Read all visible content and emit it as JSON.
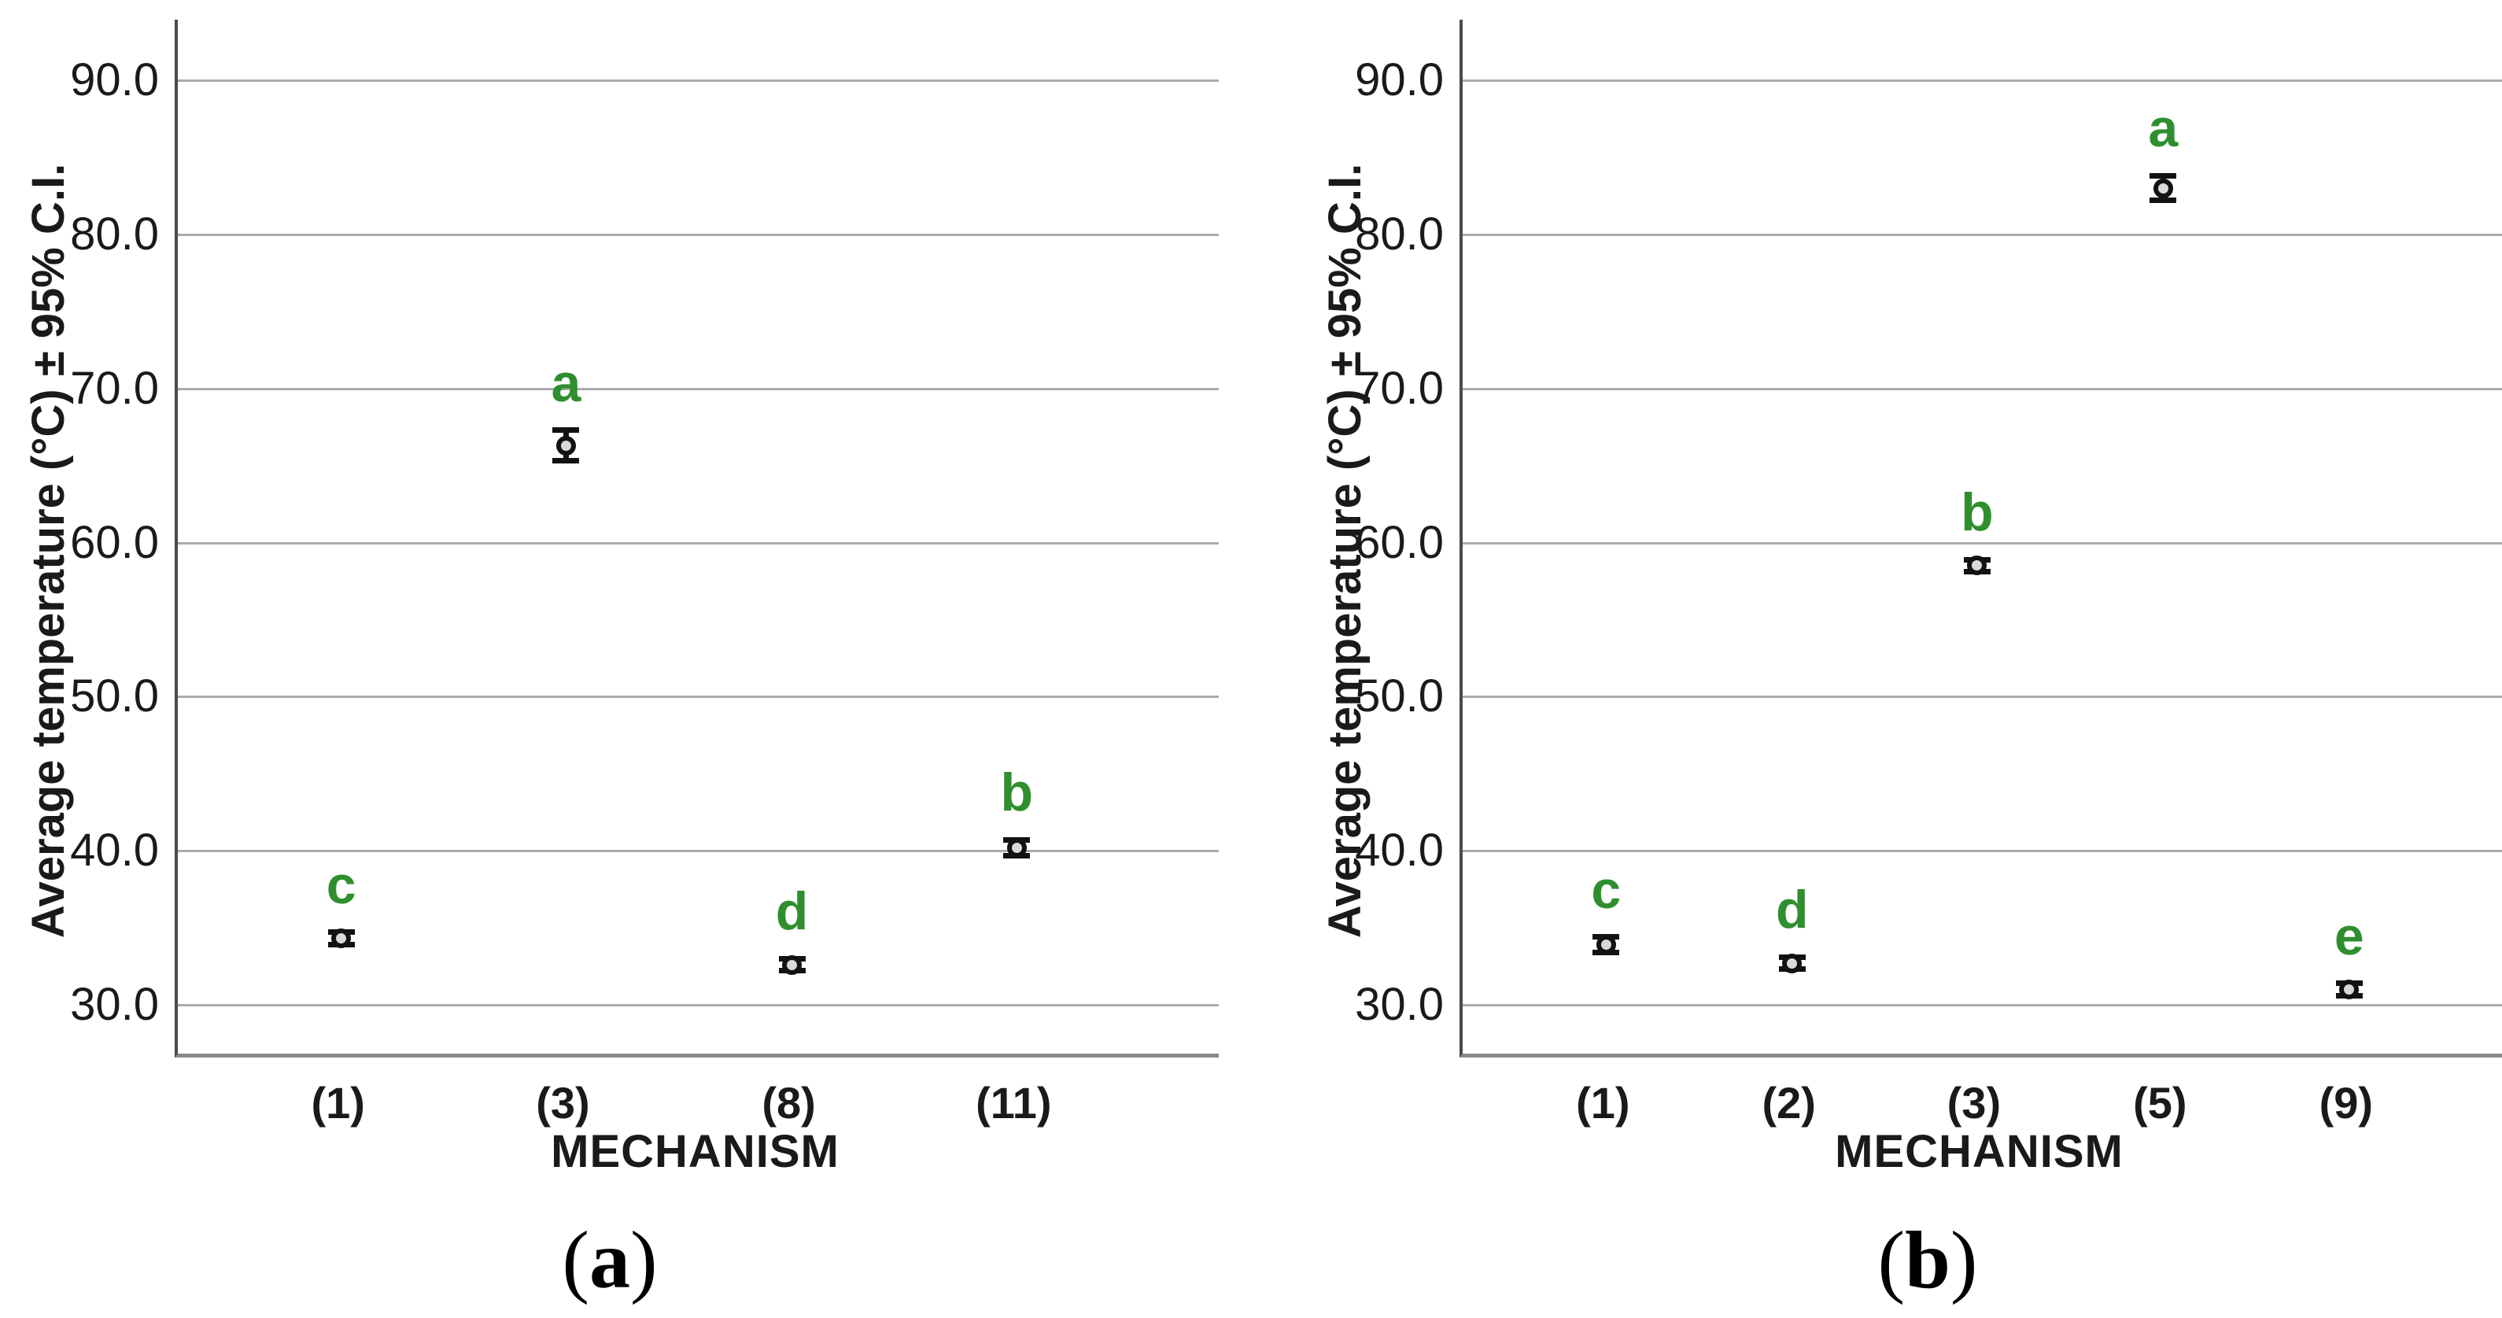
{
  "figure": {
    "background": "#ffffff",
    "text_color": "#1a1a1a",
    "grid_color": "#ababab",
    "y_axis_line_color": "#4a4a4a",
    "x_baseline_color": "#8a8a8a",
    "sig_letter_color": "#2f8f2f",
    "marker_fill": "#d9d9d9",
    "marker_stroke": "#121212",
    "error_bar_color": "#121212"
  },
  "chart_data": [
    {
      "type": "scatter",
      "panel": "a",
      "caption_open": "(",
      "caption_letter": "a",
      "caption_close": ")",
      "xlabel": "MECHANISM",
      "ylabel": "Average temperature (°C) ± 95% C.I.",
      "ylim": [
        26.8,
        93.9
      ],
      "yticks": [
        90,
        80,
        70,
        60,
        50,
        40,
        30
      ],
      "ytick_labels": [
        "90.0",
        "80.0",
        "70.0",
        "60.0",
        "50.0",
        "40.0",
        "30.0"
      ],
      "grid": true,
      "legend": "none",
      "categories": [
        "(1)",
        "(3)",
        "(8)",
        "(11)"
      ],
      "series": [
        {
          "name": "Average temperature mean ± 95% C.I.",
          "means": [
            34.3,
            66.3,
            32.6,
            40.2
          ],
          "ci95": [
            0.4,
            1.0,
            0.4,
            0.5
          ],
          "sig_letters": [
            "c",
            "a",
            "d",
            "b"
          ]
        }
      ]
    },
    {
      "type": "scatter",
      "panel": "b",
      "caption_open": "(",
      "caption_letter": "b",
      "caption_close": ")",
      "xlabel": "MECHANISM",
      "ylabel": "Average temperature (°C) ± 95% C.I.",
      "ylim": [
        26.8,
        93.9
      ],
      "yticks": [
        90,
        80,
        70,
        60,
        50,
        40,
        30
      ],
      "ytick_labels": [
        "90.0",
        "80.0",
        "70.0",
        "60.0",
        "50.0",
        "40.0",
        "30.0"
      ],
      "grid": true,
      "legend": "none",
      "categories": [
        "(1)",
        "(2)",
        "(3)",
        "(5)",
        "(9)"
      ],
      "series": [
        {
          "name": "Average temperature mean ± 95% C.I.",
          "means": [
            33.9,
            32.7,
            58.5,
            83.0,
            31.0
          ],
          "ci95": [
            0.5,
            0.4,
            0.4,
            0.8,
            0.4
          ],
          "sig_letters": [
            "c",
            "d",
            "b",
            "a",
            "e"
          ]
        }
      ]
    }
  ]
}
